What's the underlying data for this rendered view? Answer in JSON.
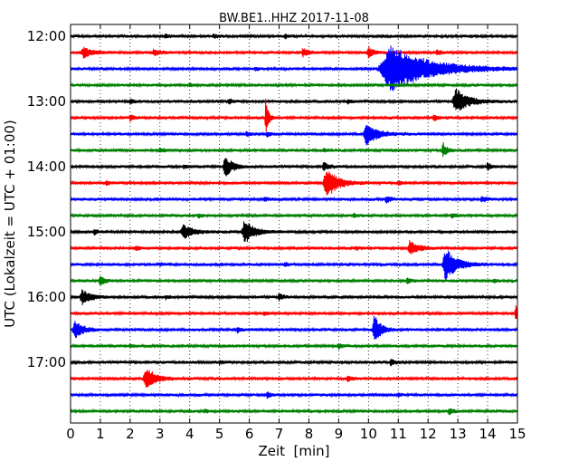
{
  "chart_data": {
    "type": "line",
    "title": "BW.BE1..HHZ 2017-11-08",
    "xlabel": "Zeit  [min]",
    "ylabel": "UTC (Lokalzeit = UTC + 01:00)",
    "xlim": [
      0,
      15
    ],
    "x_ticks": [
      "0",
      "1",
      "2",
      "3",
      "4",
      "5",
      "6",
      "7",
      "8",
      "9",
      "10",
      "11",
      "12",
      "13",
      "14",
      "15"
    ],
    "y_tick_labels": [
      "12:00",
      "13:00",
      "14:00",
      "15:00",
      "16:00",
      "17:00"
    ],
    "grid": "vertical dotted",
    "trace_interval_minutes": 15,
    "colors": [
      "#000000",
      "#ff0000",
      "#0000ff",
      "#008000"
    ],
    "series": [
      {
        "start": "12:00",
        "color_index": 0,
        "events": [
          [
            3.2,
            0.25,
            0.12
          ],
          [
            7.2,
            0.25,
            0.12
          ],
          [
            4.8,
            0.2,
            0.12
          ]
        ]
      },
      {
        "start": "12:15",
        "color_index": 1,
        "events": [
          [
            0.45,
            0.6,
            0.3
          ],
          [
            2.8,
            0.35,
            0.2
          ],
          [
            7.8,
            0.5,
            0.15
          ],
          [
            10.0,
            0.7,
            0.15
          ],
          [
            12.3,
            0.3,
            0.12
          ]
        ]
      },
      {
        "start": "12:30",
        "color_index": 2,
        "events": [
          [
            10.8,
            2.8,
            1.2
          ],
          [
            6.2,
            0.2,
            0.12
          ]
        ]
      },
      {
        "start": "12:45",
        "color_index": 3,
        "events": [
          [
            4.0,
            0.15,
            0.12
          ],
          [
            9.0,
            0.15,
            0.12
          ]
        ]
      },
      {
        "start": "13:00",
        "color_index": 0,
        "events": [
          [
            12.95,
            1.4,
            0.4
          ],
          [
            5.3,
            0.35,
            0.12
          ],
          [
            2.0,
            0.25,
            0.12
          ],
          [
            9.3,
            0.25,
            0.12
          ]
        ]
      },
      {
        "start": "13:15",
        "color_index": 1,
        "events": [
          [
            6.55,
            2.5,
            0.08
          ],
          [
            2.0,
            0.35,
            0.12
          ],
          [
            12.2,
            0.35,
            0.12
          ]
        ]
      },
      {
        "start": "13:30",
        "color_index": 2,
        "events": [
          [
            9.95,
            1.3,
            0.35
          ],
          [
            5.9,
            0.3,
            0.12
          ],
          [
            6.6,
            0.3,
            0.12
          ]
        ]
      },
      {
        "start": "13:45",
        "color_index": 3,
        "events": [
          [
            12.5,
            1.0,
            0.12
          ],
          [
            3.0,
            0.25,
            0.12
          ],
          [
            8.5,
            0.2,
            0.12
          ]
        ]
      },
      {
        "start": "14:00",
        "color_index": 0,
        "events": [
          [
            5.2,
            1.2,
            0.25
          ],
          [
            8.5,
            0.5,
            0.15
          ],
          [
            14.0,
            0.5,
            0.12
          ],
          [
            3.8,
            0.25,
            0.12
          ]
        ]
      },
      {
        "start": "14:15",
        "color_index": 1,
        "events": [
          [
            8.6,
            1.9,
            0.35
          ],
          [
            11.0,
            0.25,
            0.12
          ],
          [
            1.2,
            0.25,
            0.12
          ]
        ]
      },
      {
        "start": "14:30",
        "color_index": 2,
        "events": [
          [
            10.6,
            0.4,
            0.15
          ],
          [
            13.8,
            0.45,
            0.12
          ],
          [
            6.5,
            0.25,
            0.12
          ]
        ]
      },
      {
        "start": "14:45",
        "color_index": 3,
        "events": [
          [
            4.3,
            0.25,
            0.12
          ],
          [
            12.8,
            0.3,
            0.12
          ],
          [
            9.5,
            0.2,
            0.12
          ]
        ]
      },
      {
        "start": "15:00",
        "color_index": 0,
        "events": [
          [
            3.8,
            0.9,
            0.3
          ],
          [
            5.85,
            1.45,
            0.3
          ],
          [
            0.8,
            0.3,
            0.12
          ]
        ]
      },
      {
        "start": "15:15",
        "color_index": 1,
        "events": [
          [
            11.4,
            0.9,
            0.25
          ],
          [
            2.2,
            0.3,
            0.15
          ],
          [
            9.6,
            0.2,
            0.12
          ]
        ]
      },
      {
        "start": "15:30",
        "color_index": 2,
        "events": [
          [
            12.6,
            2.0,
            0.35
          ],
          [
            7.2,
            0.25,
            0.12
          ],
          [
            3.0,
            0.2,
            0.12
          ]
        ]
      },
      {
        "start": "15:45",
        "color_index": 3,
        "events": [
          [
            1.0,
            0.6,
            0.15
          ],
          [
            11.3,
            0.3,
            0.12
          ],
          [
            14.2,
            0.25,
            0.12
          ]
        ]
      },
      {
        "start": "16:00",
        "color_index": 0,
        "events": [
          [
            0.4,
            0.9,
            0.25
          ],
          [
            7.0,
            0.45,
            0.12
          ],
          [
            3.2,
            0.25,
            0.12
          ]
        ]
      },
      {
        "start": "16:15",
        "color_index": 1,
        "events": [
          [
            14.95,
            1.0,
            0.15
          ],
          [
            6.5,
            0.2,
            0.12
          ]
        ]
      },
      {
        "start": "16:30",
        "color_index": 2,
        "events": [
          [
            0.15,
            1.1,
            0.25
          ],
          [
            10.2,
            1.8,
            0.2
          ],
          [
            5.6,
            0.3,
            0.12
          ]
        ]
      },
      {
        "start": "16:45",
        "color_index": 3,
        "events": [
          [
            9.0,
            0.3,
            0.12
          ],
          [
            2.0,
            0.2,
            0.12
          ]
        ]
      },
      {
        "start": "17:00",
        "color_index": 0,
        "events": [
          [
            10.75,
            0.4,
            0.12
          ],
          [
            5.0,
            0.2,
            0.12
          ]
        ]
      },
      {
        "start": "17:15",
        "color_index": 1,
        "events": [
          [
            2.55,
            1.4,
            0.3
          ],
          [
            9.3,
            0.35,
            0.12
          ]
        ]
      },
      {
        "start": "17:30",
        "color_index": 2,
        "events": [
          [
            6.6,
            0.35,
            0.12
          ],
          [
            11.0,
            0.2,
            0.12
          ]
        ]
      },
      {
        "start": "17:45",
        "color_index": 3,
        "events": [
          [
            12.7,
            0.4,
            0.12
          ],
          [
            4.5,
            0.2,
            0.12
          ]
        ]
      }
    ]
  }
}
